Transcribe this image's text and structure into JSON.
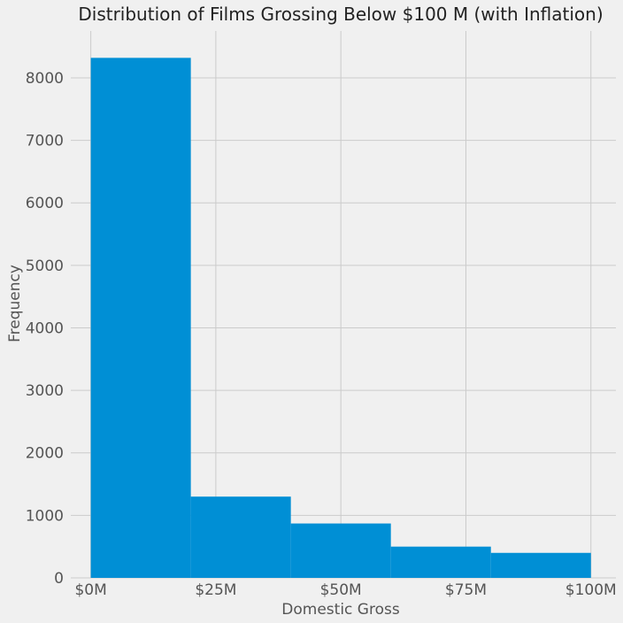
{
  "chart_data": {
    "type": "bar",
    "title": "Distribution of Films Grossing Below $100 M (with Inflation)",
    "xlabel": "Domestic Gross",
    "ylabel": "Frequency",
    "bins": [
      {
        "start": 0,
        "end": 20,
        "count": 8320
      },
      {
        "start": 20,
        "end": 40,
        "count": 1300
      },
      {
        "start": 40,
        "end": 60,
        "count": 870
      },
      {
        "start": 60,
        "end": 80,
        "count": 500
      },
      {
        "start": 80,
        "end": 100,
        "count": 400
      }
    ],
    "xlim": [
      -4,
      105
    ],
    "ylim": [
      0,
      8750
    ],
    "x_ticks": [
      {
        "value": 0,
        "label": "$0M"
      },
      {
        "value": 25,
        "label": "$25M"
      },
      {
        "value": 50,
        "label": "$50M"
      },
      {
        "value": 75,
        "label": "$75M"
      },
      {
        "value": 100,
        "label": "$100M"
      }
    ],
    "y_ticks": [
      0,
      1000,
      2000,
      3000,
      4000,
      5000,
      6000,
      7000,
      8000
    ],
    "grid": true,
    "bar_color": "#008fd5",
    "background_color": "#f0f0f0",
    "grid_color": "#cbcbcb"
  }
}
